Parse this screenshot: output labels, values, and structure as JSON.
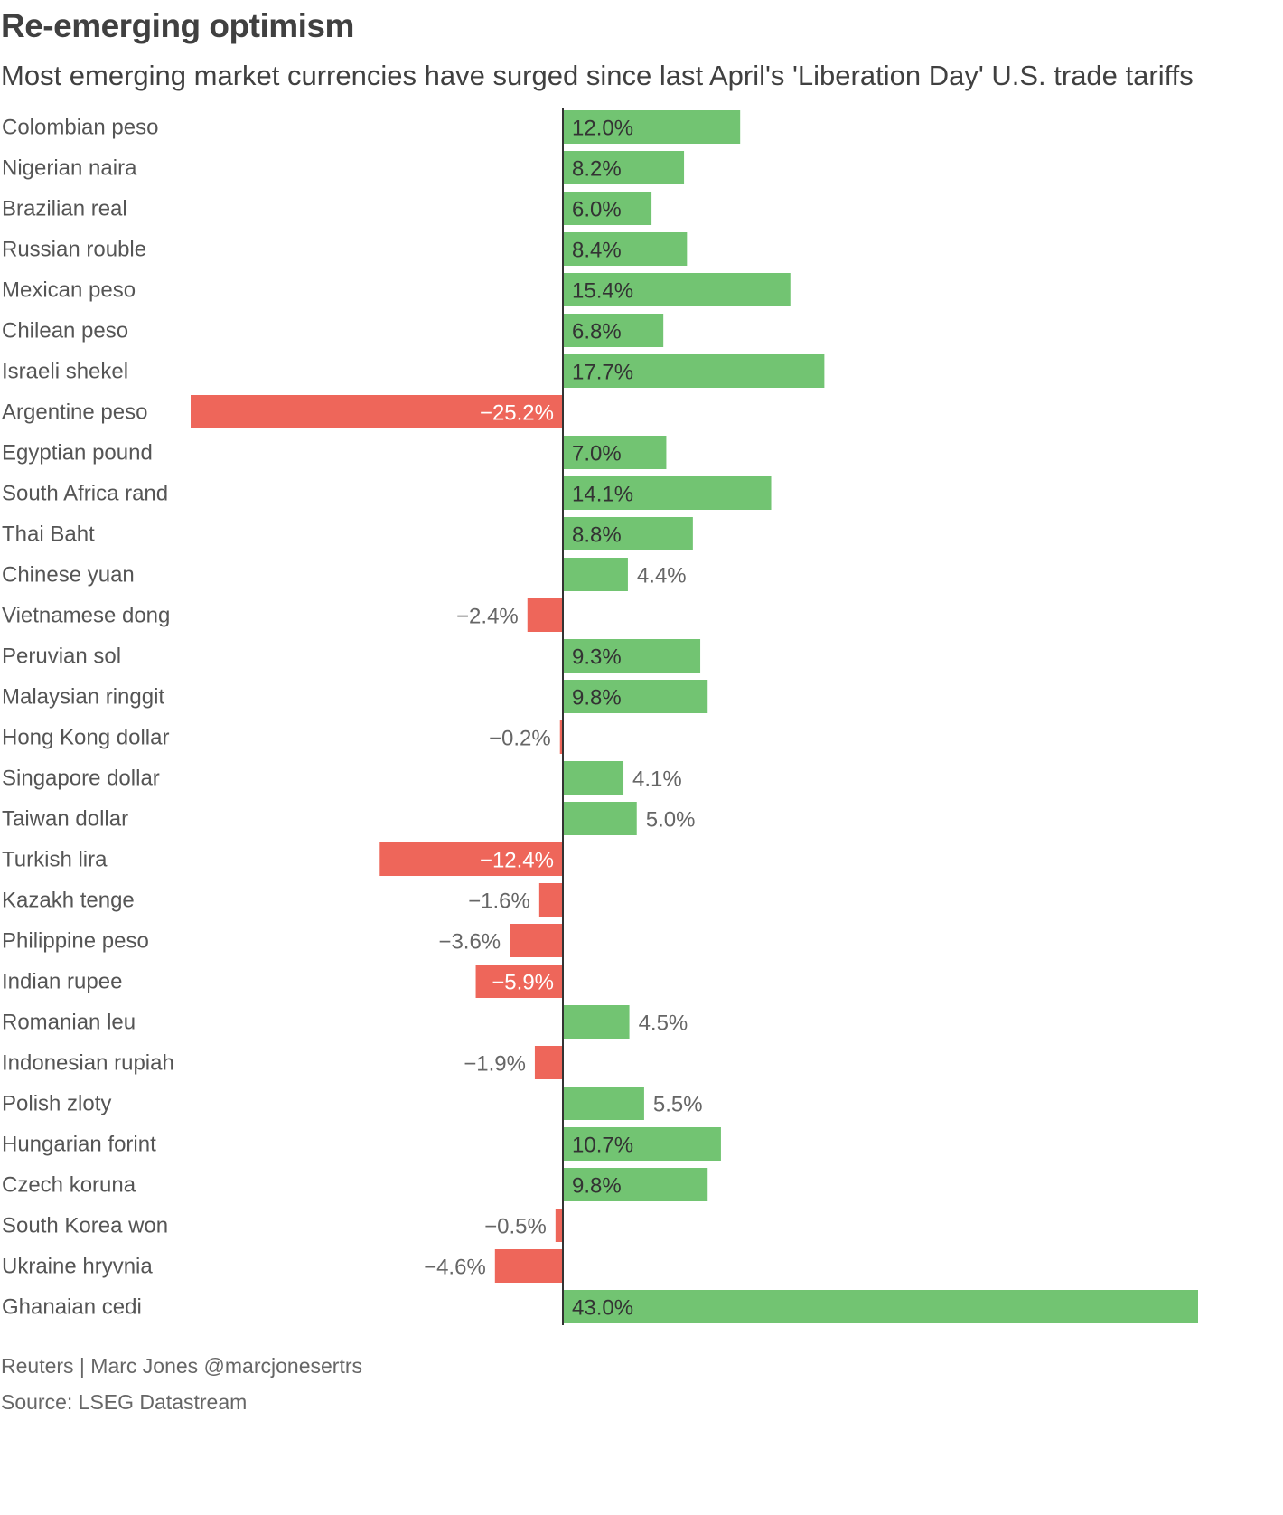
{
  "header": {
    "title": "Re-emerging optimism",
    "subtitle": "Most emerging market currencies have surged since last April's 'Liberation Day' U.S. trade tariffs"
  },
  "footer": {
    "credit": "Reuters | Marc Jones @marcjonesertrs",
    "source": "Source: LSEG Datastream"
  },
  "colors": {
    "positive": "#72c472",
    "negative": "#ee665a",
    "axis": "#333333",
    "label": "#555555",
    "value_inside": "#333333",
    "value_outside": "#666666"
  },
  "chart_data": {
    "type": "bar",
    "orientation": "horizontal",
    "title": "Re-emerging optimism",
    "xlabel": "",
    "ylabel": "",
    "unit": "%",
    "xlim": [
      -25.2,
      43.0
    ],
    "grid": false,
    "categories": [
      "Colombian peso",
      "Nigerian naira",
      "Brazilian real",
      "Russian rouble",
      "Mexican peso",
      "Chilean peso",
      "Israeli shekel",
      "Argentine peso",
      "Egyptian pound",
      "South Africa rand",
      "Thai Baht",
      "Chinese yuan",
      "Vietnamese dong",
      "Peruvian sol",
      "Malaysian ringgit",
      "Hong Kong dollar",
      "Singapore dollar",
      "Taiwan dollar",
      "Turkish lira",
      "Kazakh tenge",
      "Philippine peso",
      "Indian rupee",
      "Romanian leu",
      "Indonesian rupiah",
      "Polish zloty",
      "Hungarian forint",
      "Czech koruna",
      "South Korea won",
      "Ukraine hryvnia",
      "Ghanaian cedi"
    ],
    "values": [
      12.0,
      8.2,
      6.0,
      8.4,
      15.4,
      6.8,
      17.7,
      -25.2,
      7.0,
      14.1,
      8.8,
      4.4,
      -2.4,
      9.3,
      9.8,
      -0.2,
      4.1,
      5.0,
      -12.4,
      -1.6,
      -3.6,
      -5.9,
      4.5,
      -1.9,
      5.5,
      10.7,
      9.8,
      -0.5,
      -4.6,
      43.0
    ],
    "value_labels": [
      "12.0%",
      "8.2%",
      "6.0%",
      "8.4%",
      "15.4%",
      "6.8%",
      "17.7%",
      "−25.2%",
      "7.0%",
      "14.1%",
      "8.8%",
      "4.4%",
      "−2.4%",
      "9.3%",
      "9.8%",
      "−0.2%",
      "4.1%",
      "5.0%",
      "−12.4%",
      "−1.6%",
      "−3.6%",
      "−5.9%",
      "4.5%",
      "−1.9%",
      "5.5%",
      "10.7%",
      "9.8%",
      "−0.5%",
      "−4.6%",
      "43.0%"
    ]
  }
}
